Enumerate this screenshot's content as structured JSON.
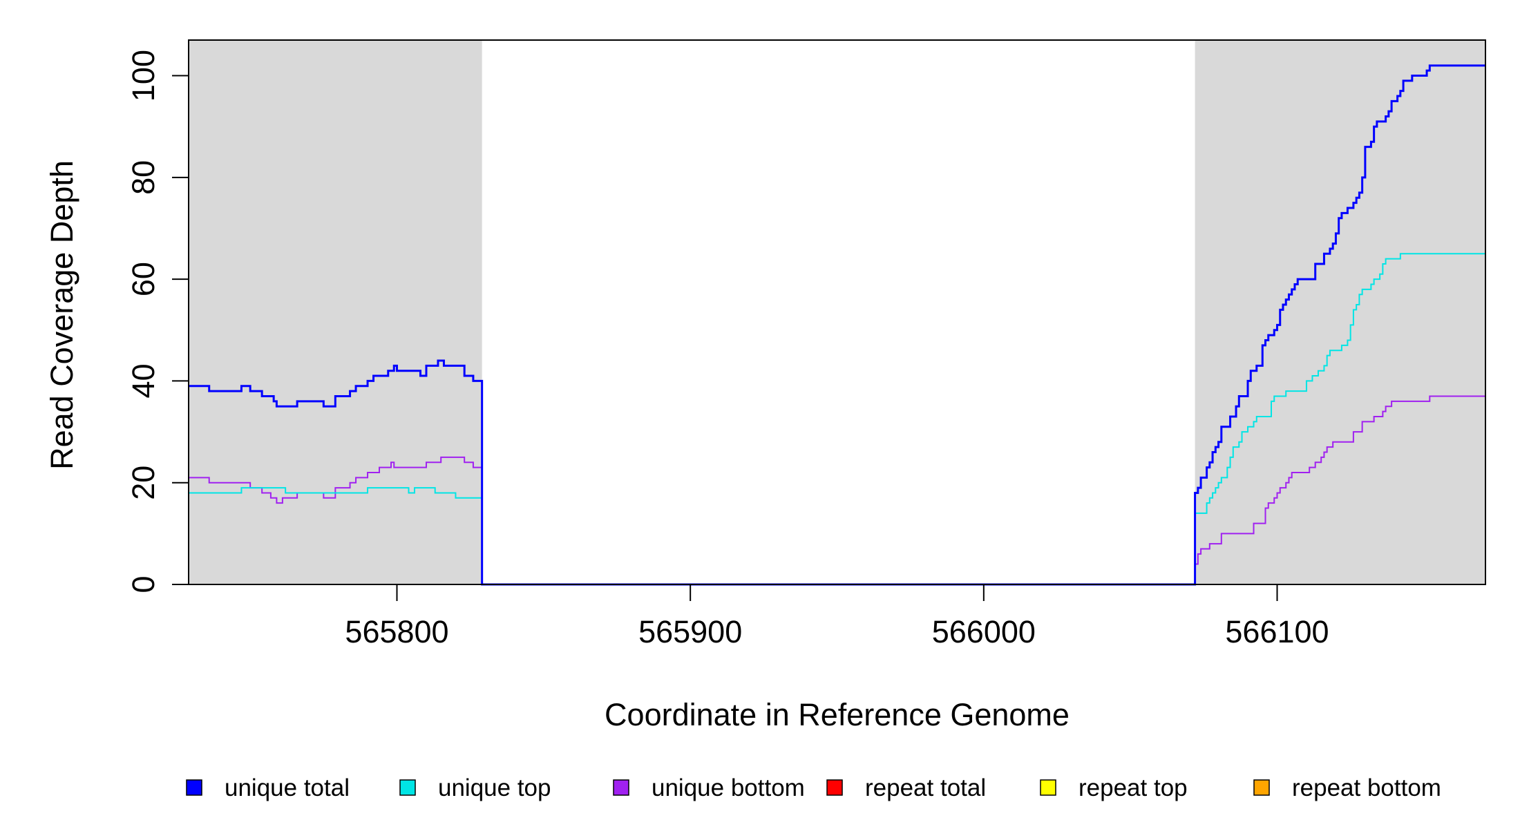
{
  "chart_data": {
    "type": "line",
    "title": "",
    "xlabel": "Coordinate in Reference Genome",
    "ylabel": "Read Coverage Depth",
    "xlim": [
      565729,
      566171
    ],
    "ylim": [
      0,
      107
    ],
    "x_ticks": [
      565800,
      565900,
      566000,
      566100
    ],
    "y_ticks": [
      0,
      20,
      40,
      60,
      80,
      100
    ],
    "grid": false,
    "step": true,
    "shaded_ranges": [
      {
        "from": 565729,
        "to": 565829,
        "color": "#d9d9d9"
      },
      {
        "from": 566072,
        "to": 566171,
        "color": "#d9d9d9"
      }
    ],
    "legend_position": "bottom",
    "series": [
      {
        "name": "unique total",
        "color": "#0000ff",
        "stroke": 3,
        "points": [
          [
            565729,
            39
          ],
          [
            565736,
            38
          ],
          [
            565747,
            39
          ],
          [
            565750,
            38
          ],
          [
            565754,
            37
          ],
          [
            565758,
            36
          ],
          [
            565759,
            35
          ],
          [
            565766,
            36
          ],
          [
            565775,
            35
          ],
          [
            565779,
            37
          ],
          [
            565784,
            38
          ],
          [
            565786,
            39
          ],
          [
            565790,
            40
          ],
          [
            565792,
            41
          ],
          [
            565797,
            42
          ],
          [
            565799,
            43
          ],
          [
            565800,
            42
          ],
          [
            565808,
            41
          ],
          [
            565810,
            43
          ],
          [
            565814,
            44
          ],
          [
            565816,
            43
          ],
          [
            565823,
            41
          ],
          [
            565826,
            40
          ],
          [
            565829,
            0
          ],
          [
            566072,
            18
          ],
          [
            566073,
            19
          ],
          [
            566074,
            21
          ],
          [
            566076,
            23
          ],
          [
            566077,
            24
          ],
          [
            566078,
            26
          ],
          [
            566079,
            27
          ],
          [
            566080,
            28
          ],
          [
            566081,
            31
          ],
          [
            566084,
            33
          ],
          [
            566086,
            35
          ],
          [
            566087,
            37
          ],
          [
            566090,
            40
          ],
          [
            566091,
            42
          ],
          [
            566093,
            43
          ],
          [
            566095,
            47
          ],
          [
            566096,
            48
          ],
          [
            566097,
            49
          ],
          [
            566099,
            50
          ],
          [
            566100,
            51
          ],
          [
            566101,
            54
          ],
          [
            566102,
            55
          ],
          [
            566103,
            56
          ],
          [
            566104,
            57
          ],
          [
            566105,
            58
          ],
          [
            566106,
            59
          ],
          [
            566107,
            60
          ],
          [
            566113,
            63
          ],
          [
            566116,
            65
          ],
          [
            566118,
            66
          ],
          [
            566119,
            67
          ],
          [
            566120,
            69
          ],
          [
            566121,
            72
          ],
          [
            566122,
            73
          ],
          [
            566124,
            74
          ],
          [
            566126,
            75
          ],
          [
            566127,
            76
          ],
          [
            566128,
            77
          ],
          [
            566129,
            80
          ],
          [
            566130,
            86
          ],
          [
            566132,
            87
          ],
          [
            566133,
            90
          ],
          [
            566134,
            91
          ],
          [
            566137,
            92
          ],
          [
            566138,
            93
          ],
          [
            566139,
            95
          ],
          [
            566141,
            96
          ],
          [
            566142,
            97
          ],
          [
            566143,
            99
          ],
          [
            566146,
            100
          ],
          [
            566151,
            101
          ],
          [
            566152,
            102
          ],
          [
            566171,
            102
          ]
        ]
      },
      {
        "name": "unique top",
        "color": "#00e5e5",
        "stroke": 2,
        "points": [
          [
            565729,
            18
          ],
          [
            565747,
            19
          ],
          [
            565762,
            18
          ],
          [
            565790,
            19
          ],
          [
            565804,
            18
          ],
          [
            565806,
            19
          ],
          [
            565813,
            18
          ],
          [
            565820,
            17
          ],
          [
            565829,
            0
          ],
          [
            566072,
            14
          ],
          [
            566076,
            16
          ],
          [
            566077,
            17
          ],
          [
            566078,
            18
          ],
          [
            566079,
            19
          ],
          [
            566080,
            20
          ],
          [
            566081,
            21
          ],
          [
            566083,
            23
          ],
          [
            566084,
            25
          ],
          [
            566085,
            27
          ],
          [
            566087,
            28
          ],
          [
            566088,
            30
          ],
          [
            566090,
            31
          ],
          [
            566092,
            32
          ],
          [
            566093,
            33
          ],
          [
            566098,
            36
          ],
          [
            566099,
            37
          ],
          [
            566103,
            38
          ],
          [
            566110,
            40
          ],
          [
            566112,
            41
          ],
          [
            566114,
            42
          ],
          [
            566116,
            43
          ],
          [
            566117,
            45
          ],
          [
            566118,
            46
          ],
          [
            566122,
            47
          ],
          [
            566124,
            48
          ],
          [
            566125,
            51
          ],
          [
            566126,
            54
          ],
          [
            566127,
            55
          ],
          [
            566128,
            57
          ],
          [
            566129,
            58
          ],
          [
            566132,
            59
          ],
          [
            566133,
            60
          ],
          [
            566135,
            61
          ],
          [
            566136,
            63
          ],
          [
            566137,
            64
          ],
          [
            566142,
            65
          ],
          [
            566171,
            65
          ]
        ]
      },
      {
        "name": "unique bottom",
        "color": "#a020f0",
        "stroke": 2,
        "points": [
          [
            565729,
            21
          ],
          [
            565736,
            20
          ],
          [
            565750,
            19
          ],
          [
            565754,
            18
          ],
          [
            565757,
            17
          ],
          [
            565759,
            16
          ],
          [
            565761,
            17
          ],
          [
            565766,
            18
          ],
          [
            565775,
            17
          ],
          [
            565779,
            19
          ],
          [
            565782,
            19
          ],
          [
            565784,
            20
          ],
          [
            565786,
            21
          ],
          [
            565790,
            22
          ],
          [
            565794,
            23
          ],
          [
            565798,
            24
          ],
          [
            565799,
            23
          ],
          [
            565810,
            24
          ],
          [
            565815,
            25
          ],
          [
            565823,
            24
          ],
          [
            565826,
            23
          ],
          [
            565829,
            0
          ],
          [
            566072,
            4
          ],
          [
            566073,
            6
          ],
          [
            566074,
            7
          ],
          [
            566077,
            8
          ],
          [
            566081,
            10
          ],
          [
            566092,
            12
          ],
          [
            566096,
            15
          ],
          [
            566097,
            16
          ],
          [
            566099,
            17
          ],
          [
            566100,
            18
          ],
          [
            566101,
            19
          ],
          [
            566103,
            20
          ],
          [
            566104,
            21
          ],
          [
            566105,
            22
          ],
          [
            566111,
            23
          ],
          [
            566113,
            24
          ],
          [
            566115,
            25
          ],
          [
            566116,
            26
          ],
          [
            566117,
            27
          ],
          [
            566119,
            28
          ],
          [
            566126,
            30
          ],
          [
            566129,
            32
          ],
          [
            566133,
            33
          ],
          [
            566136,
            34
          ],
          [
            566137,
            35
          ],
          [
            566139,
            36
          ],
          [
            566152,
            37
          ],
          [
            566171,
            37
          ]
        ]
      },
      {
        "name": "repeat total",
        "color": "#ff0000",
        "stroke": 2,
        "points": [
          [
            565729,
            0
          ],
          [
            566171,
            0
          ]
        ]
      },
      {
        "name": "repeat top",
        "color": "#ffff00",
        "stroke": 2,
        "points": [
          [
            565729,
            0
          ],
          [
            566171,
            0
          ]
        ]
      },
      {
        "name": "repeat bottom",
        "color": "#ffa500",
        "stroke": 2,
        "points": [
          [
            565729,
            0
          ],
          [
            566171,
            0
          ]
        ]
      }
    ]
  }
}
